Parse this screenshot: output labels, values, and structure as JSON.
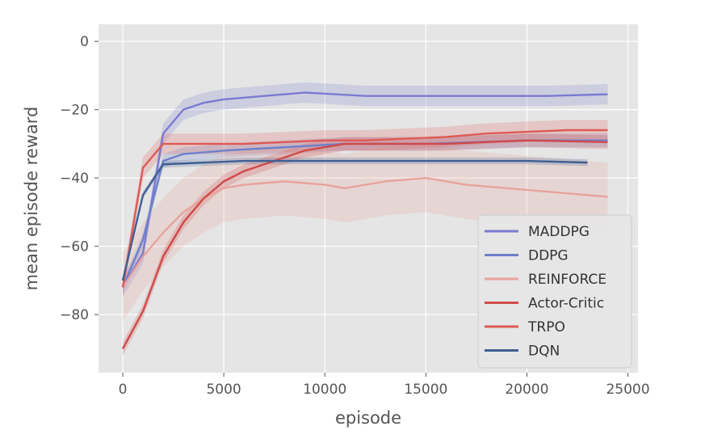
{
  "chart_data": {
    "type": "line",
    "xlabel": "episode",
    "ylabel": "mean episode reward",
    "xlim": [
      -1200,
      25500
    ],
    "ylim": [
      -97,
      5
    ],
    "xticks": [
      0,
      5000,
      10000,
      15000,
      20000,
      25000
    ],
    "yticks": [
      0,
      -20,
      -40,
      -60,
      -80
    ],
    "grid": true,
    "legend_position": "lower-right",
    "series": [
      {
        "name": "MADDPG",
        "color": "#7b7bd0",
        "points": [
          [
            0,
            -72
          ],
          [
            1000,
            -62
          ],
          [
            2000,
            -27
          ],
          [
            3000,
            -20
          ],
          [
            4000,
            -18
          ],
          [
            5000,
            -17
          ],
          [
            7000,
            -16
          ],
          [
            9000,
            -15
          ],
          [
            12000,
            -16
          ],
          [
            15000,
            -16
          ],
          [
            18000,
            -16
          ],
          [
            21000,
            -16
          ],
          [
            24000,
            -15.5
          ]
        ],
        "band": 3
      },
      {
        "name": "DDPG",
        "color": "#6f80c9",
        "points": [
          [
            0,
            -72
          ],
          [
            1000,
            -58
          ],
          [
            2000,
            -35
          ],
          [
            3000,
            -33
          ],
          [
            5000,
            -32
          ],
          [
            8000,
            -31
          ],
          [
            11000,
            -30
          ],
          [
            15000,
            -30
          ],
          [
            20000,
            -29
          ],
          [
            24000,
            -29
          ]
        ],
        "band": 2
      },
      {
        "name": "REINFORCE",
        "color": "#e8a39b",
        "points": [
          [
            0,
            -72
          ],
          [
            1000,
            -63
          ],
          [
            2000,
            -56
          ],
          [
            3000,
            -50
          ],
          [
            4000,
            -46
          ],
          [
            5000,
            -43
          ],
          [
            6000,
            -42
          ],
          [
            8000,
            -41
          ],
          [
            10000,
            -42
          ],
          [
            11000,
            -43
          ],
          [
            13000,
            -41
          ],
          [
            15000,
            -40
          ],
          [
            17000,
            -42
          ],
          [
            19000,
            -43
          ],
          [
            21000,
            -44
          ],
          [
            24000,
            -45.5
          ]
        ],
        "band": 10
      },
      {
        "name": "Actor-Critic",
        "color": "#d04a4a",
        "points": [
          [
            0,
            -90
          ],
          [
            1000,
            -79
          ],
          [
            2000,
            -63
          ],
          [
            3000,
            -53
          ],
          [
            4000,
            -46
          ],
          [
            5000,
            -41
          ],
          [
            6000,
            -38
          ],
          [
            7000,
            -36
          ],
          [
            8000,
            -34
          ],
          [
            9000,
            -32
          ],
          [
            10000,
            -31
          ],
          [
            11000,
            -30
          ],
          [
            13000,
            -30
          ],
          [
            16000,
            -30
          ],
          [
            20000,
            -29
          ],
          [
            24000,
            -29.5
          ]
        ],
        "band": 2
      },
      {
        "name": "TRPO",
        "color": "#dd5a55",
        "points": [
          [
            0,
            -72
          ],
          [
            1000,
            -37
          ],
          [
            2000,
            -30
          ],
          [
            4000,
            -30
          ],
          [
            6000,
            -30
          ],
          [
            8000,
            -29.5
          ],
          [
            10000,
            -29
          ],
          [
            12000,
            -29
          ],
          [
            14000,
            -28.5
          ],
          [
            16000,
            -28
          ],
          [
            18000,
            -27
          ],
          [
            20000,
            -26.5
          ],
          [
            22000,
            -26
          ],
          [
            24000,
            -26
          ]
        ],
        "band": 3
      },
      {
        "name": "DQN",
        "color": "#3f5f93",
        "points": [
          [
            0,
            -70
          ],
          [
            1000,
            -45
          ],
          [
            2000,
            -36
          ],
          [
            4000,
            -35.5
          ],
          [
            6000,
            -35
          ],
          [
            8000,
            -35
          ],
          [
            10000,
            -35
          ],
          [
            12000,
            -35
          ],
          [
            14000,
            -35
          ],
          [
            17000,
            -35
          ],
          [
            20000,
            -35
          ],
          [
            23000,
            -35.5
          ]
        ],
        "band": 1
      }
    ]
  }
}
